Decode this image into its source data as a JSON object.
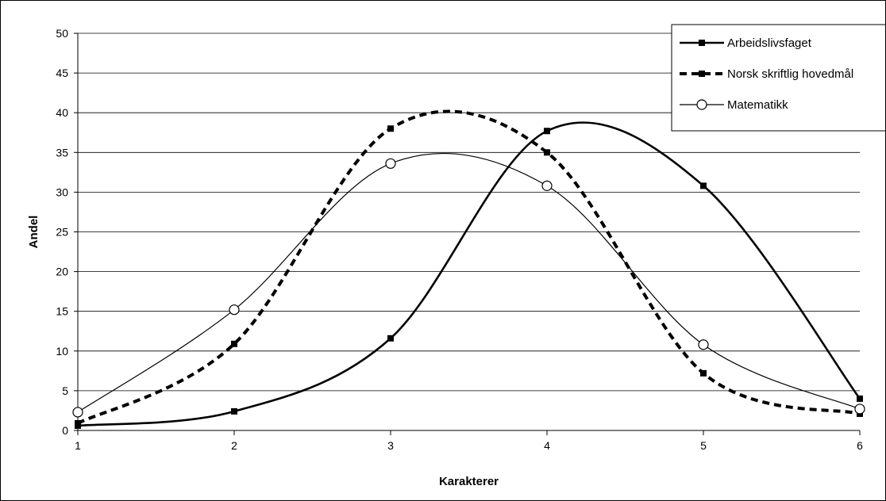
{
  "chart_data": {
    "type": "line",
    "title": "",
    "xlabel": "Karakterer",
    "ylabel": "Andel",
    "x": [
      1,
      2,
      3,
      4,
      5,
      6
    ],
    "xlim": [
      1,
      6
    ],
    "ylim": [
      0,
      50
    ],
    "y_ticks": [
      0,
      5,
      10,
      15,
      20,
      25,
      30,
      35,
      40,
      45,
      50
    ],
    "grid": "horizontal",
    "legend_position": "top-right",
    "series": [
      {
        "name": "Arbeidslivsfaget",
        "values": [
          0.6,
          2.4,
          11.6,
          37.7,
          30.8,
          4.0
        ],
        "line": "solid",
        "marker": "square",
        "color": "#000000"
      },
      {
        "name": "Norsk skriftlig hovedmål",
        "values": [
          0.9,
          10.9,
          38.0,
          35.0,
          7.2,
          2.1
        ],
        "line": "dashed",
        "marker": "square",
        "color": "#000000"
      },
      {
        "name": "Matematikk",
        "values": [
          2.3,
          15.2,
          33.6,
          30.8,
          10.8,
          2.7
        ],
        "line": "thin",
        "marker": "circle",
        "color": "#000000"
      }
    ]
  }
}
